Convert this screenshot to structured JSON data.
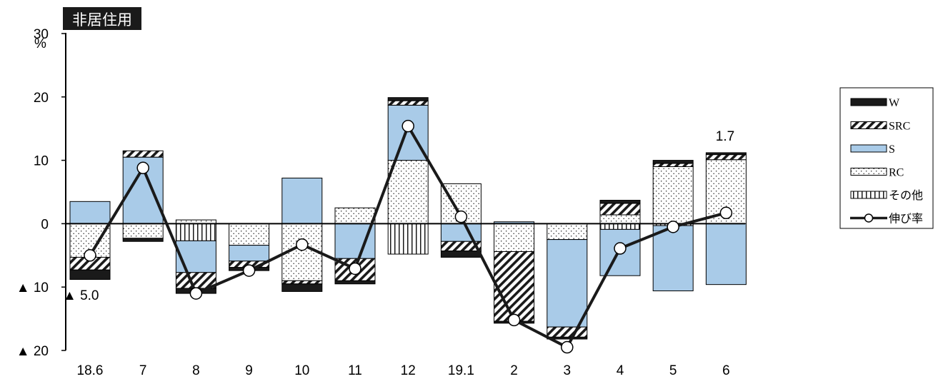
{
  "chart_data": {
    "type": "bar",
    "subtype": "stacked-bar-with-line",
    "title": "非居住用",
    "ylabel": "%",
    "ylim": [
      -20,
      30
    ],
    "yticks": [
      {
        "value": 30,
        "label": "30"
      },
      {
        "value": 20,
        "label": "20"
      },
      {
        "value": 10,
        "label": "10"
      },
      {
        "value": 0,
        "label": "0"
      },
      {
        "value": -10,
        "label": "▲ 10"
      },
      {
        "value": -20,
        "label": "▲ 20"
      }
    ],
    "categories": [
      "18.6",
      "7",
      "8",
      "9",
      "10",
      "11",
      "12",
      "19.1",
      "2",
      "3",
      "4",
      "5",
      "6"
    ],
    "series": [
      {
        "name": "W",
        "kind": "bar",
        "values": [
          -1.5,
          -0.5,
          -0.8,
          -0.5,
          -1.2,
          -0.5,
          0.5,
          -1.0,
          -0.3,
          -0.3,
          0.5,
          0.5,
          0.3
        ]
      },
      {
        "name": "SRC",
        "kind": "bar",
        "values": [
          -2.0,
          1.0,
          -2.5,
          -1.0,
          -0.5,
          -3.5,
          0.7,
          -1.5,
          -11.0,
          -1.6,
          1.8,
          0.5,
          0.8
        ]
      },
      {
        "name": "S",
        "kind": "bar",
        "values": [
          3.5,
          10.5,
          -5.0,
          -2.5,
          7.2,
          -5.5,
          8.7,
          -2.8,
          0.3,
          -13.8,
          -7.3,
          -10.3,
          -9.6
        ]
      },
      {
        "name": "RC",
        "kind": "bar",
        "values": [
          -5.3,
          -2.3,
          0.6,
          -3.4,
          -9.0,
          2.5,
          10.0,
          6.3,
          -4.4,
          -2.5,
          1.4,
          9.0,
          10.1
        ]
      },
      {
        "name": "その他",
        "kind": "bar",
        "values": [
          0,
          0,
          -2.7,
          0,
          0,
          0,
          -4.8,
          0,
          0,
          0,
          -0.9,
          -0.3,
          0
        ]
      },
      {
        "name": "伸び率",
        "kind": "line",
        "values": [
          -5.0,
          8.8,
          -11.0,
          -7.4,
          -3.3,
          -7.1,
          15.4,
          1.1,
          -15.2,
          -19.5,
          -3.9,
          -0.5,
          1.7
        ]
      }
    ],
    "annotations": [
      {
        "category": "18.6",
        "text": "▲ 5.0"
      },
      {
        "category": "6",
        "text": "1.7"
      }
    ],
    "legend_position": "right",
    "grid": false
  },
  "colors": {
    "W": "#1a1a1a",
    "S": "#a9cbe8",
    "line": "#1a1a1a",
    "title_bg": "#1a1a1a"
  }
}
